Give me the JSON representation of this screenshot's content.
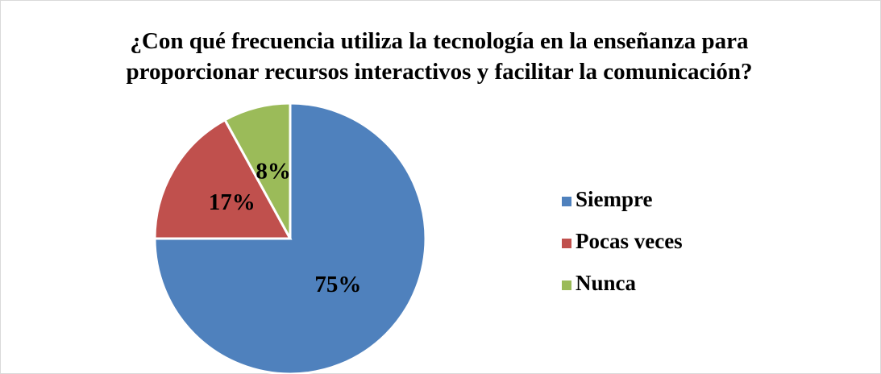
{
  "chart_data": {
    "type": "pie",
    "title": "¿Con qué frecuencia utiliza la tecnología en la enseñanza para proporcionar recursos interactivos y facilitar la comunicación?",
    "categories": [
      "Siempre",
      "Pocas veces",
      "Nunca"
    ],
    "values": [
      75,
      17,
      8
    ],
    "value_labels": [
      "75%",
      "17%",
      "8%"
    ],
    "colors": [
      "#4f81bd",
      "#c0504d",
      "#9bbb59"
    ],
    "legend": "right"
  }
}
